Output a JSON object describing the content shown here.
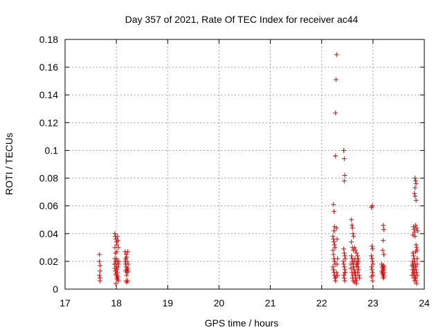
{
  "chart_data": {
    "type": "scatter",
    "title": "Day 357 of 2021, Rate Of TEC Index for receiver ac44",
    "xlabel": "GPS time / hours",
    "ylabel": "ROTI / TECUs",
    "xlim": [
      17,
      24
    ],
    "ylim": [
      0,
      0.18
    ],
    "xticks": [
      "17",
      "18",
      "19",
      "20",
      "21",
      "22",
      "23",
      "24"
    ],
    "yticks": [
      "0",
      "0.02",
      "0.04",
      "0.06",
      "0.08",
      "0.1",
      "0.12",
      "0.14",
      "0.16",
      "0.18"
    ],
    "grid": true,
    "marker": "plus",
    "color": "#e00000",
    "points": [
      [
        17.67,
        0.025
      ],
      [
        17.67,
        0.02
      ],
      [
        17.68,
        0.017
      ],
      [
        17.68,
        0.013
      ],
      [
        17.67,
        0.01
      ],
      [
        17.68,
        0.008
      ],
      [
        17.68,
        0.006
      ],
      [
        17.97,
        0.04
      ],
      [
        17.98,
        0.038
      ],
      [
        17.99,
        0.036
      ],
      [
        18.0,
        0.034
      ],
      [
        17.97,
        0.03
      ],
      [
        18.01,
        0.032
      ],
      [
        18.02,
        0.038
      ],
      [
        18.03,
        0.035
      ],
      [
        18.04,
        0.03
      ],
      [
        17.98,
        0.026
      ],
      [
        18.01,
        0.027
      ],
      [
        17.97,
        0.022
      ],
      [
        17.98,
        0.02
      ],
      [
        17.99,
        0.018
      ],
      [
        18.0,
        0.016
      ],
      [
        18.01,
        0.014
      ],
      [
        18.02,
        0.012
      ],
      [
        18.03,
        0.016
      ],
      [
        18.04,
        0.018
      ],
      [
        17.97,
        0.015
      ],
      [
        17.98,
        0.013
      ],
      [
        17.99,
        0.011
      ],
      [
        18.0,
        0.01
      ],
      [
        18.01,
        0.008
      ],
      [
        18.02,
        0.007
      ],
      [
        18.03,
        0.009
      ],
      [
        18.04,
        0.006
      ],
      [
        17.99,
        0.004
      ],
      [
        18.05,
        0.02
      ],
      [
        17.96,
        0.018
      ],
      [
        18.0,
        0.022
      ],
      [
        18.02,
        0.02
      ],
      [
        18.17,
        0.027
      ],
      [
        18.19,
        0.025
      ],
      [
        18.2,
        0.023
      ],
      [
        18.22,
        0.027
      ],
      [
        18.17,
        0.02
      ],
      [
        18.18,
        0.018
      ],
      [
        18.19,
        0.016
      ],
      [
        18.2,
        0.014
      ],
      [
        18.21,
        0.012
      ],
      [
        18.22,
        0.015
      ],
      [
        18.23,
        0.018
      ],
      [
        18.18,
        0.022
      ],
      [
        18.21,
        0.02
      ],
      [
        18.2,
        0.01
      ],
      [
        18.22,
        0.006
      ],
      [
        18.2,
        0.005
      ],
      [
        18.19,
        0.006
      ],
      [
        18.23,
        0.013
      ],
      [
        18.18,
        0.013
      ],
      [
        22.23,
        0.061
      ],
      [
        22.24,
        0.056
      ],
      [
        22.25,
        0.045
      ],
      [
        22.24,
        0.042
      ],
      [
        22.22,
        0.038
      ],
      [
        22.23,
        0.036
      ],
      [
        22.24,
        0.034
      ],
      [
        22.25,
        0.032
      ],
      [
        22.26,
        0.03
      ],
      [
        22.22,
        0.028
      ],
      [
        22.23,
        0.025
      ],
      [
        22.24,
        0.022
      ],
      [
        22.25,
        0.02
      ],
      [
        22.26,
        0.018
      ],
      [
        22.22,
        0.016
      ],
      [
        22.23,
        0.014
      ],
      [
        22.24,
        0.012
      ],
      [
        22.25,
        0.01
      ],
      [
        22.26,
        0.008
      ],
      [
        22.27,
        0.006
      ],
      [
        22.28,
        0.009
      ],
      [
        22.29,
        0.012
      ],
      [
        22.3,
        0.018
      ],
      [
        22.3,
        0.036
      ],
      [
        22.29,
        0.044
      ],
      [
        22.31,
        0.022
      ],
      [
        22.31,
        0.01
      ],
      [
        22.27,
        0.096
      ],
      [
        22.27,
        0.127
      ],
      [
        22.28,
        0.151
      ],
      [
        22.29,
        0.169
      ],
      [
        22.43,
        0.1
      ],
      [
        22.44,
        0.094
      ],
      [
        22.45,
        0.082
      ],
      [
        22.44,
        0.078
      ],
      [
        22.43,
        0.029
      ],
      [
        22.44,
        0.026
      ],
      [
        22.45,
        0.024
      ],
      [
        22.46,
        0.022
      ],
      [
        22.42,
        0.02
      ],
      [
        22.43,
        0.018
      ],
      [
        22.44,
        0.016
      ],
      [
        22.45,
        0.014
      ],
      [
        22.46,
        0.012
      ],
      [
        22.43,
        0.01
      ],
      [
        22.44,
        0.008
      ],
      [
        22.45,
        0.012
      ],
      [
        22.45,
        0.006
      ],
      [
        22.58,
        0.05
      ],
      [
        22.59,
        0.046
      ],
      [
        22.6,
        0.044
      ],
      [
        22.61,
        0.04
      ],
      [
        22.62,
        0.038
      ],
      [
        22.58,
        0.034
      ],
      [
        22.6,
        0.03
      ],
      [
        22.62,
        0.028
      ],
      [
        22.64,
        0.03
      ],
      [
        22.66,
        0.028
      ],
      [
        22.68,
        0.026
      ],
      [
        22.7,
        0.024
      ],
      [
        22.58,
        0.024
      ],
      [
        22.59,
        0.022
      ],
      [
        22.6,
        0.02
      ],
      [
        22.61,
        0.018
      ],
      [
        22.62,
        0.016
      ],
      [
        22.63,
        0.014
      ],
      [
        22.64,
        0.012
      ],
      [
        22.65,
        0.01
      ],
      [
        22.66,
        0.008
      ],
      [
        22.67,
        0.006
      ],
      [
        22.68,
        0.004
      ],
      [
        22.69,
        0.008
      ],
      [
        22.7,
        0.012
      ],
      [
        22.71,
        0.016
      ],
      [
        22.72,
        0.014
      ],
      [
        22.73,
        0.01
      ],
      [
        22.74,
        0.008
      ],
      [
        22.59,
        0.012
      ],
      [
        22.61,
        0.01
      ],
      [
        22.63,
        0.02
      ],
      [
        22.65,
        0.022
      ],
      [
        22.67,
        0.018
      ],
      [
        22.69,
        0.02
      ],
      [
        22.71,
        0.022
      ],
      [
        22.6,
        0.008
      ],
      [
        22.62,
        0.006
      ],
      [
        22.64,
        0.005
      ],
      [
        22.66,
        0.012
      ],
      [
        22.68,
        0.016
      ],
      [
        22.7,
        0.018
      ],
      [
        22.72,
        0.02
      ],
      [
        22.57,
        0.018
      ],
      [
        22.57,
        0.015
      ],
      [
        22.97,
        0.059
      ],
      [
        22.99,
        0.06
      ],
      [
        22.98,
        0.031
      ],
      [
        22.99,
        0.029
      ],
      [
        22.97,
        0.024
      ],
      [
        22.98,
        0.022
      ],
      [
        22.99,
        0.02
      ],
      [
        23.0,
        0.018
      ],
      [
        22.97,
        0.016
      ],
      [
        22.98,
        0.014
      ],
      [
        22.99,
        0.012
      ],
      [
        23.0,
        0.01
      ],
      [
        22.97,
        0.009
      ],
      [
        22.99,
        0.006
      ],
      [
        23.2,
        0.046
      ],
      [
        23.21,
        0.043
      ],
      [
        23.2,
        0.035
      ],
      [
        23.19,
        0.028
      ],
      [
        23.21,
        0.025
      ],
      [
        23.17,
        0.018
      ],
      [
        23.18,
        0.016
      ],
      [
        23.19,
        0.015
      ],
      [
        23.2,
        0.017
      ],
      [
        23.21,
        0.014
      ],
      [
        23.22,
        0.016
      ],
      [
        23.17,
        0.013
      ],
      [
        23.18,
        0.012
      ],
      [
        23.19,
        0.011
      ],
      [
        23.2,
        0.01
      ],
      [
        23.21,
        0.009
      ],
      [
        23.2,
        0.008
      ],
      [
        23.22,
        0.012
      ],
      [
        23.82,
        0.08
      ],
      [
        23.83,
        0.078
      ],
      [
        23.84,
        0.076
      ],
      [
        23.82,
        0.073
      ],
      [
        23.81,
        0.069
      ],
      [
        23.82,
        0.067
      ],
      [
        23.84,
        0.064
      ],
      [
        23.79,
        0.045
      ],
      [
        23.8,
        0.043
      ],
      [
        23.81,
        0.041
      ],
      [
        23.78,
        0.039
      ],
      [
        23.83,
        0.046
      ],
      [
        23.82,
        0.038
      ],
      [
        23.85,
        0.044
      ],
      [
        23.87,
        0.042
      ],
      [
        23.84,
        0.032
      ],
      [
        23.85,
        0.03
      ],
      [
        23.86,
        0.028
      ],
      [
        23.83,
        0.027
      ],
      [
        23.78,
        0.026
      ],
      [
        23.79,
        0.024
      ],
      [
        23.8,
        0.022
      ],
      [
        23.81,
        0.02
      ],
      [
        23.82,
        0.018
      ],
      [
        23.83,
        0.016
      ],
      [
        23.84,
        0.014
      ],
      [
        23.85,
        0.012
      ],
      [
        23.86,
        0.01
      ],
      [
        23.77,
        0.02
      ],
      [
        23.78,
        0.018
      ],
      [
        23.79,
        0.016
      ],
      [
        23.8,
        0.014
      ],
      [
        23.81,
        0.012
      ],
      [
        23.82,
        0.01
      ],
      [
        23.83,
        0.008
      ],
      [
        23.84,
        0.006
      ],
      [
        23.85,
        0.004
      ],
      [
        23.77,
        0.014
      ],
      [
        23.78,
        0.012
      ],
      [
        23.79,
        0.01
      ],
      [
        23.8,
        0.008
      ],
      [
        23.81,
        0.006
      ],
      [
        23.86,
        0.018
      ],
      [
        23.86,
        0.022
      ],
      [
        23.76,
        0.017
      ],
      [
        23.76,
        0.01
      ]
    ]
  }
}
